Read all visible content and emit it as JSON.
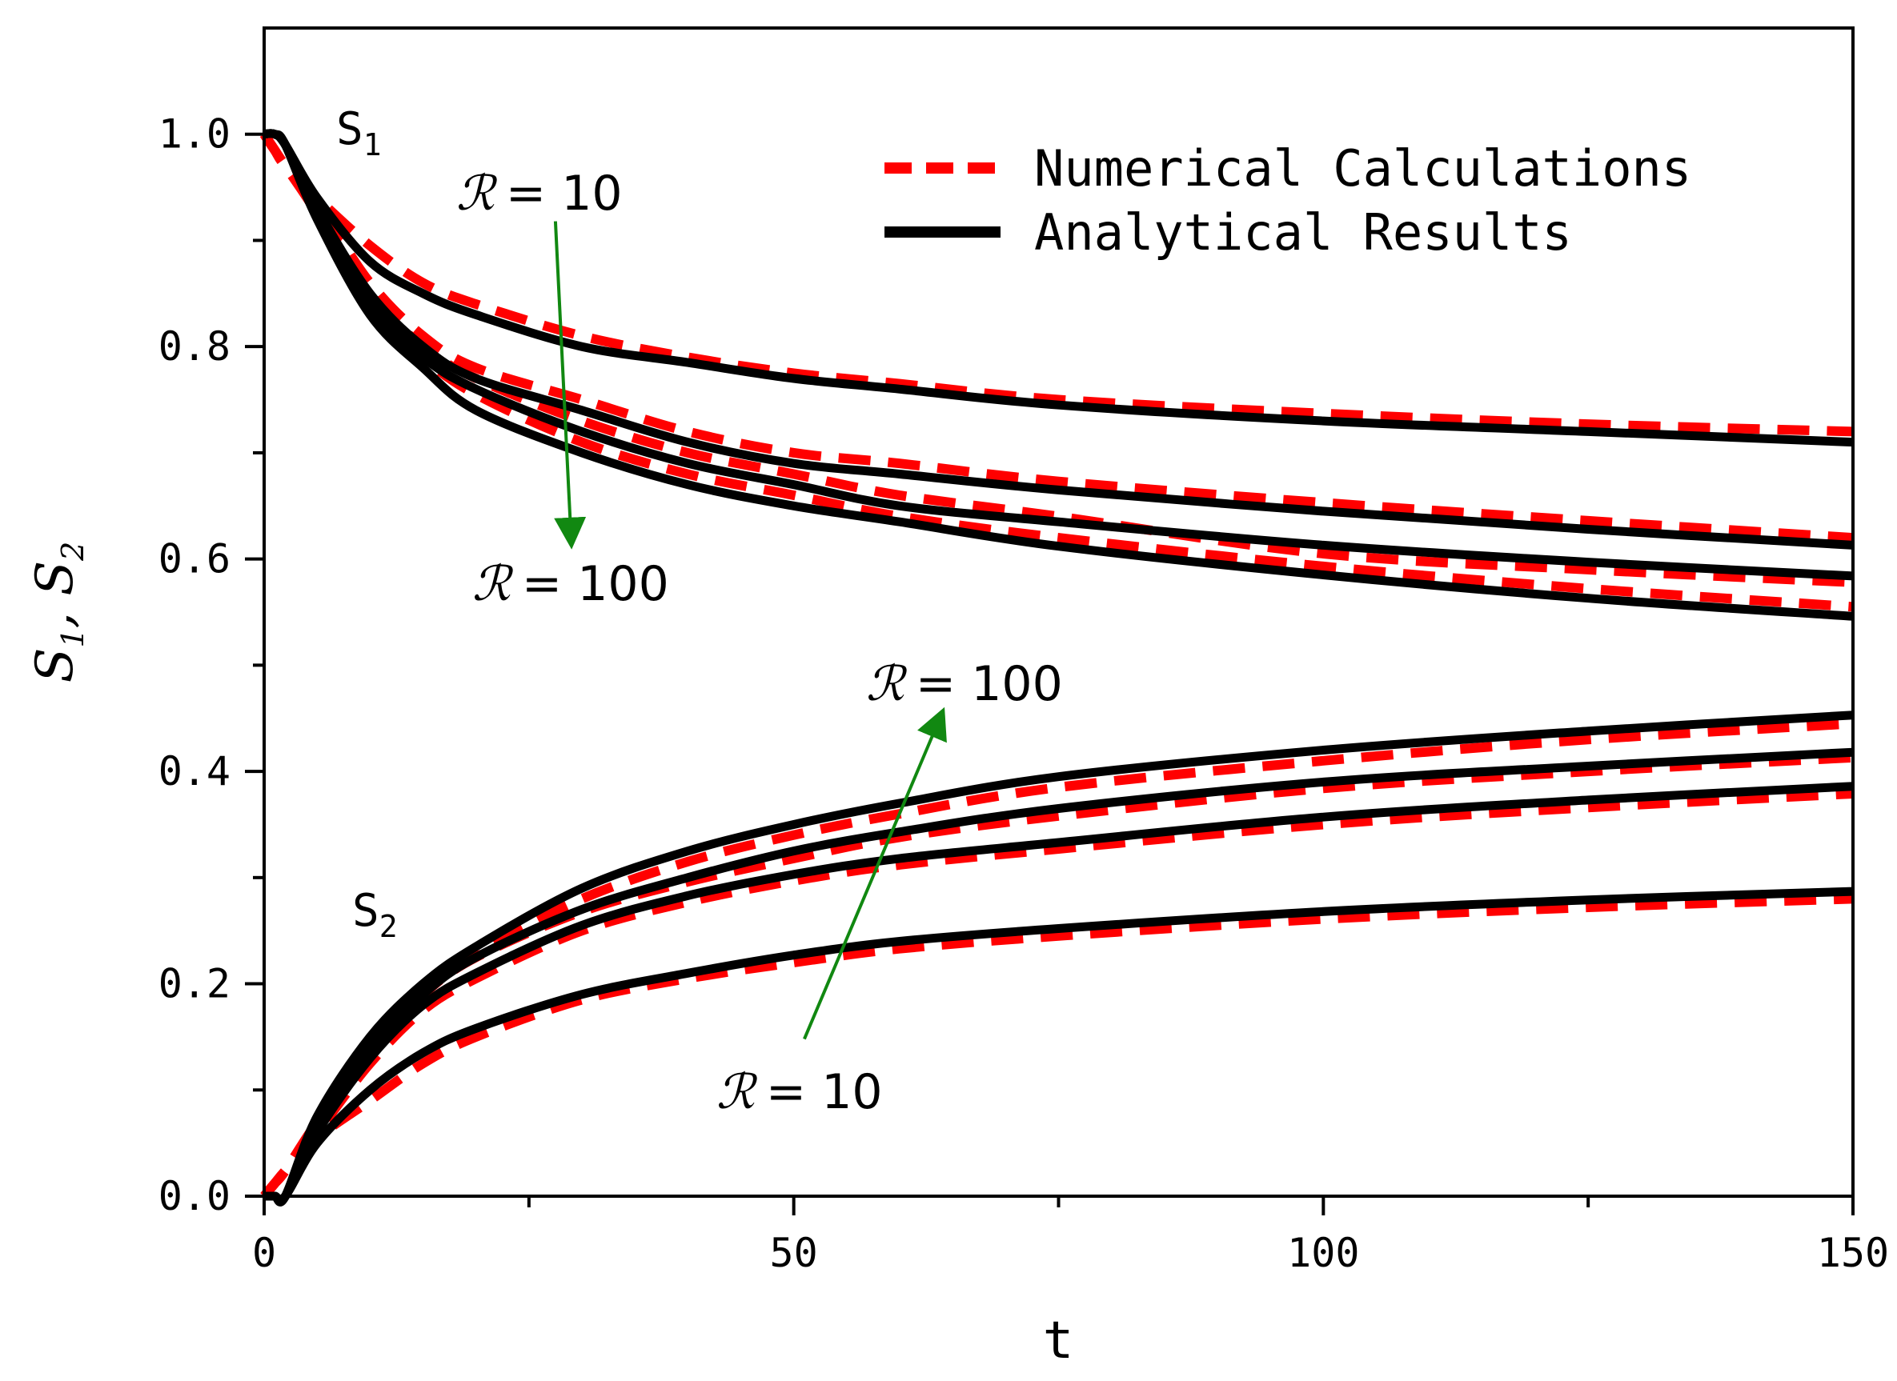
{
  "chart_data": {
    "type": "line",
    "title": "",
    "xlabel": "t",
    "ylabel": "S1, S2",
    "ylabel_parts": {
      "s1_main": "S",
      "s1_sub": "1",
      "sep": ", ",
      "s2_main": "S",
      "s2_sub": "2"
    },
    "xlim": [
      0,
      150
    ],
    "ylim": [
      0,
      1.1
    ],
    "x_ticks": [
      0,
      50,
      100,
      150
    ],
    "x_tick_labels": [
      "0",
      "50",
      "100",
      "150"
    ],
    "x_minor_ticks": [
      25,
      75,
      125
    ],
    "y_ticks": [
      0,
      0.2,
      0.4,
      0.6,
      0.8,
      1.0
    ],
    "y_tick_labels": [
      "0.0",
      "0.2",
      "0.4",
      "0.6",
      "0.8",
      "1.0"
    ],
    "y_minor_ticks": [
      0.1,
      0.3,
      0.5,
      0.7,
      0.9
    ],
    "grid": false,
    "legend": {
      "position": "top-right",
      "entries": [
        {
          "label": "Numerical Calculations",
          "color": "#ff0000",
          "style": "dashed"
        },
        {
          "label": "Analytical Results",
          "color": "#000000",
          "style": "solid"
        }
      ]
    },
    "x": [
      0,
      1,
      2,
      5,
      10,
      15,
      20,
      30,
      40,
      50,
      60,
      75,
      100,
      125,
      150
    ],
    "series": [
      {
        "name": "S1 analytical R=10",
        "group": "S1",
        "kind": "analytical",
        "color": "#000000",
        "values": [
          1.0,
          1.0,
          0.99,
          0.94,
          0.88,
          0.85,
          0.83,
          0.8,
          0.785,
          0.77,
          0.76,
          0.745,
          0.73,
          0.72,
          0.71
        ]
      },
      {
        "name": "S1 numerical R=10",
        "group": "S1",
        "kind": "numerical",
        "color": "#ff0000",
        "values": [
          1.0,
          0.985,
          0.97,
          0.94,
          0.895,
          0.86,
          0.84,
          0.81,
          0.79,
          0.775,
          0.765,
          0.75,
          0.737,
          0.727,
          0.72
        ]
      },
      {
        "name": "S1 analytical R=30",
        "group": "S1",
        "kind": "analytical",
        "color": "#000000",
        "values": [
          1.0,
          1.0,
          0.99,
          0.93,
          0.85,
          0.8,
          0.77,
          0.74,
          0.71,
          0.69,
          0.68,
          0.665,
          0.645,
          0.628,
          0.613
        ]
      },
      {
        "name": "S1 numerical R=30",
        "group": "S1",
        "kind": "numerical",
        "color": "#ff0000",
        "values": [
          1.0,
          0.985,
          0.97,
          0.935,
          0.86,
          0.81,
          0.78,
          0.75,
          0.72,
          0.7,
          0.69,
          0.673,
          0.653,
          0.636,
          0.62
        ]
      },
      {
        "name": "S1 analytical R=50",
        "group": "S1",
        "kind": "analytical",
        "color": "#000000",
        "values": [
          1.0,
          1.0,
          0.99,
          0.93,
          0.84,
          0.79,
          0.76,
          0.72,
          0.69,
          0.67,
          0.65,
          0.635,
          0.613,
          0.597,
          0.584
        ]
      },
      {
        "name": "S1 numerical R=50",
        "group": "S1",
        "kind": "numerical",
        "color": "#ff0000",
        "values": [
          1.0,
          0.985,
          0.97,
          0.93,
          0.85,
          0.8,
          0.77,
          0.73,
          0.7,
          0.68,
          0.66,
          0.64,
          0.605,
          0.59,
          0.578
        ]
      },
      {
        "name": "S1 analytical R=100",
        "group": "S1",
        "kind": "analytical",
        "color": "#000000",
        "values": [
          1.0,
          1.0,
          0.99,
          0.92,
          0.83,
          0.78,
          0.74,
          0.7,
          0.67,
          0.65,
          0.635,
          0.612,
          0.585,
          0.563,
          0.546
        ]
      },
      {
        "name": "S1 numerical R=100",
        "group": "S1",
        "kind": "numerical",
        "color": "#ff0000",
        "values": [
          1.0,
          0.985,
          0.97,
          0.925,
          0.84,
          0.79,
          0.755,
          0.71,
          0.68,
          0.66,
          0.64,
          0.62,
          0.593,
          0.572,
          0.555
        ]
      },
      {
        "name": "S2 analytical R=10",
        "group": "S2",
        "kind": "analytical",
        "color": "#000000",
        "values": [
          0.0,
          0.0,
          0.0,
          0.05,
          0.1,
          0.135,
          0.158,
          0.19,
          0.21,
          0.227,
          0.24,
          0.252,
          0.268,
          0.279,
          0.287
        ]
      },
      {
        "name": "S2 numerical R=10",
        "group": "S2",
        "kind": "numerical",
        "color": "#ff0000",
        "values": [
          0.0,
          0.012,
          0.024,
          0.055,
          0.09,
          0.125,
          0.15,
          0.185,
          0.205,
          0.22,
          0.233,
          0.245,
          0.261,
          0.272,
          0.28
        ]
      },
      {
        "name": "S2 analytical R=30",
        "group": "S2",
        "kind": "analytical",
        "color": "#000000",
        "values": [
          0.0,
          0.0,
          0.0,
          0.06,
          0.13,
          0.18,
          0.21,
          0.255,
          0.283,
          0.303,
          0.318,
          0.333,
          0.357,
          0.373,
          0.386
        ]
      },
      {
        "name": "S2 numerical R=30",
        "group": "S2",
        "kind": "numerical",
        "color": "#ff0000",
        "values": [
          0.0,
          0.012,
          0.024,
          0.06,
          0.125,
          0.175,
          0.205,
          0.25,
          0.277,
          0.297,
          0.312,
          0.327,
          0.35,
          0.366,
          0.379
        ]
      },
      {
        "name": "S2 analytical R=50",
        "group": "S2",
        "kind": "analytical",
        "color": "#000000",
        "values": [
          0.0,
          0.0,
          0.0,
          0.07,
          0.14,
          0.19,
          0.225,
          0.27,
          0.3,
          0.325,
          0.343,
          0.365,
          0.39,
          0.405,
          0.418
        ]
      },
      {
        "name": "S2 numerical R=50",
        "group": "S2",
        "kind": "numerical",
        "color": "#ff0000",
        "values": [
          0.0,
          0.012,
          0.024,
          0.07,
          0.14,
          0.19,
          0.225,
          0.268,
          0.296,
          0.318,
          0.338,
          0.358,
          0.384,
          0.4,
          0.413
        ]
      },
      {
        "name": "S2 analytical R=100",
        "group": "S2",
        "kind": "analytical",
        "color": "#000000",
        "values": [
          0.0,
          0.0,
          0.0,
          0.075,
          0.15,
          0.2,
          0.235,
          0.29,
          0.325,
          0.35,
          0.37,
          0.395,
          0.42,
          0.438,
          0.453
        ]
      },
      {
        "name": "S2 numerical R=100",
        "group": "S2",
        "kind": "numerical",
        "color": "#ff0000",
        "values": [
          0.0,
          0.012,
          0.024,
          0.07,
          0.145,
          0.195,
          0.23,
          0.28,
          0.315,
          0.34,
          0.36,
          0.385,
          0.41,
          0.43,
          0.445
        ]
      }
    ],
    "annotations": {
      "s1_label": {
        "main": "S",
        "sub": "1"
      },
      "s2_label": {
        "main": "S",
        "sub": "2"
      },
      "r_symbol": "ℛ",
      "r_top_s1": "= 10",
      "r_bottom_s1": "= 100",
      "r_top_s2": "= 100",
      "r_bottom_s2": "= 10",
      "arrow_color": "#118811",
      "arrow_s1": {
        "from": [
          27.5,
          0.918
        ],
        "to": [
          29,
          0.615
        ]
      },
      "arrow_s2": {
        "from": [
          51,
          0.148
        ],
        "to": [
          64,
          0.455
        ]
      }
    }
  }
}
